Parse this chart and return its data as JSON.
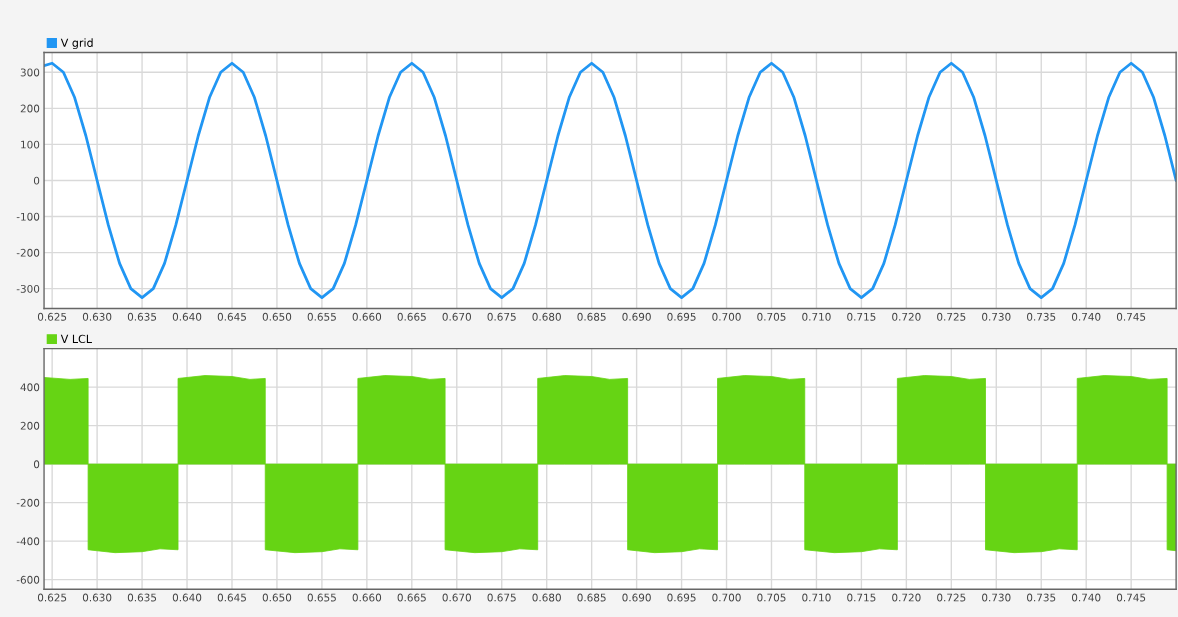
{
  "chart_data": [
    {
      "type": "line",
      "legend": "top left",
      "grid": true,
      "xlim": [
        0.6241,
        0.75
      ],
      "ylim": [
        -355,
        355
      ],
      "xticks": [
        {
          "value": 0.625,
          "label": "0.625"
        },
        {
          "value": 0.63,
          "label": "0.630"
        },
        {
          "value": 0.635,
          "label": "0.635"
        },
        {
          "value": 0.64,
          "label": "0.640"
        },
        {
          "value": 0.645,
          "label": "0.645"
        },
        {
          "value": 0.65,
          "label": "0.650"
        },
        {
          "value": 0.655,
          "label": "0.655"
        },
        {
          "value": 0.66,
          "label": "0.660"
        },
        {
          "value": 0.665,
          "label": "0.665"
        },
        {
          "value": 0.67,
          "label": "0.670"
        },
        {
          "value": 0.675,
          "label": "0.675"
        },
        {
          "value": 0.68,
          "label": "0.680"
        },
        {
          "value": 0.685,
          "label": "0.685"
        },
        {
          "value": 0.69,
          "label": "0.690"
        },
        {
          "value": 0.695,
          "label": "0.695"
        },
        {
          "value": 0.7,
          "label": "0.700"
        },
        {
          "value": 0.705,
          "label": "0.705"
        },
        {
          "value": 0.71,
          "label": "0.710"
        },
        {
          "value": 0.715,
          "label": "0.715"
        },
        {
          "value": 0.72,
          "label": "0.720"
        },
        {
          "value": 0.725,
          "label": "0.725"
        },
        {
          "value": 0.73,
          "label": "0.730"
        },
        {
          "value": 0.735,
          "label": "0.735"
        },
        {
          "value": 0.74,
          "label": "0.740"
        },
        {
          "value": 0.745,
          "label": "0.745"
        }
      ],
      "yticks": [
        -300,
        -200,
        -100,
        0,
        100,
        200,
        300
      ],
      "series": [
        {
          "name": "V grid",
          "color": "#2196f3",
          "x": [
            0.6241,
            0.625,
            0.62625,
            0.6275,
            0.62875,
            0.63,
            0.63125,
            0.6325,
            0.63375,
            0.635,
            0.63625,
            0.6375,
            0.63875,
            0.64,
            0.64125,
            0.6425,
            0.64375,
            0.645,
            0.64625,
            0.6475,
            0.64875,
            0.65,
            0.65125,
            0.6525,
            0.65375,
            0.655,
            0.65625,
            0.6575,
            0.65875,
            0.66,
            0.66125,
            0.6625,
            0.66375,
            0.665,
            0.66625,
            0.6675,
            0.66875,
            0.67,
            0.67125,
            0.6725,
            0.67375,
            0.675,
            0.67625,
            0.6775,
            0.67875,
            0.68,
            0.68125,
            0.6825,
            0.68375,
            0.685,
            0.68625,
            0.6875,
            0.68875,
            0.69,
            0.69125,
            0.6925,
            0.69375,
            0.695,
            0.69625,
            0.6975,
            0.69875,
            0.7,
            0.70125,
            0.7025,
            0.70375,
            0.705,
            0.70625,
            0.7075,
            0.70875,
            0.71,
            0.71125,
            0.7125,
            0.71375,
            0.715,
            0.71625,
            0.7175,
            0.71875,
            0.72,
            0.72125,
            0.7225,
            0.72375,
            0.725,
            0.72625,
            0.7275,
            0.72875,
            0.73,
            0.73125,
            0.7325,
            0.73375,
            0.735,
            0.73625,
            0.7375,
            0.73875,
            0.74,
            0.74125,
            0.7425,
            0.74375,
            0.745,
            0.74625,
            0.7475,
            0.74875,
            0.75
          ],
          "values": [
            318,
            325,
            300,
            230,
            124,
            0,
            -124,
            -230,
            -300,
            -325,
            -300,
            -230,
            -124,
            0,
            124,
            230,
            300,
            325,
            300,
            230,
            124,
            0,
            -124,
            -230,
            -300,
            -325,
            -300,
            -230,
            -124,
            0,
            124,
            230,
            300,
            325,
            300,
            230,
            124,
            0,
            -124,
            -230,
            -300,
            -325,
            -300,
            -230,
            -124,
            0,
            124,
            230,
            300,
            325,
            300,
            230,
            124,
            0,
            -124,
            -230,
            -300,
            -325,
            -300,
            -230,
            -124,
            0,
            124,
            230,
            300,
            325,
            300,
            230,
            124,
            0,
            -124,
            -230,
            -300,
            -325,
            -300,
            -230,
            -124,
            0,
            124,
            230,
            300,
            325,
            300,
            230,
            124,
            0,
            -124,
            -230,
            -300,
            -325,
            -300,
            -230,
            -124,
            0,
            124,
            230,
            300,
            325,
            300,
            230,
            124,
            0
          ]
        }
      ]
    },
    {
      "type": "area",
      "legend": "top left",
      "grid": true,
      "xlim": [
        0.6241,
        0.75
      ],
      "ylim": [
        -650,
        600
      ],
      "xticks": [
        {
          "value": 0.625,
          "label": "0.625"
        },
        {
          "value": 0.63,
          "label": "0.630"
        },
        {
          "value": 0.635,
          "label": "0.635"
        },
        {
          "value": 0.64,
          "label": "0.640"
        },
        {
          "value": 0.645,
          "label": "0.645"
        },
        {
          "value": 0.65,
          "label": "0.650"
        },
        {
          "value": 0.655,
          "label": "0.655"
        },
        {
          "value": 0.66,
          "label": "0.660"
        },
        {
          "value": 0.665,
          "label": "0.665"
        },
        {
          "value": 0.67,
          "label": "0.670"
        },
        {
          "value": 0.675,
          "label": "0.675"
        },
        {
          "value": 0.68,
          "label": "0.680"
        },
        {
          "value": 0.685,
          "label": "0.685"
        },
        {
          "value": 0.69,
          "label": "0.690"
        },
        {
          "value": 0.695,
          "label": "0.695"
        },
        {
          "value": 0.7,
          "label": "0.700"
        },
        {
          "value": 0.705,
          "label": "0.705"
        },
        {
          "value": 0.71,
          "label": "0.710"
        },
        {
          "value": 0.715,
          "label": "0.715"
        },
        {
          "value": 0.72,
          "label": "0.720"
        },
        {
          "value": 0.725,
          "label": "0.725"
        },
        {
          "value": 0.73,
          "label": "0.730"
        },
        {
          "value": 0.735,
          "label": "0.735"
        },
        {
          "value": 0.74,
          "label": "0.740"
        },
        {
          "value": 0.745,
          "label": "0.745"
        }
      ],
      "yticks": [
        -600,
        -400,
        -200,
        0,
        200,
        400
      ],
      "series": [
        {
          "name": "V LCL",
          "color": "#66d414",
          "x": [
            0.6241,
            0.6241,
            0.627,
            0.629,
            0.629,
            0.629,
            0.632,
            0.635,
            0.637,
            0.639,
            0.639,
            0.639,
            0.642,
            0.645,
            0.647,
            0.6487,
            0.6487,
            0.6487,
            0.652,
            0.655,
            0.657,
            0.659,
            0.659,
            0.659,
            0.662,
            0.665,
            0.667,
            0.6687,
            0.6687,
            0.6687,
            0.672,
            0.675,
            0.677,
            0.679,
            0.679,
            0.679,
            0.682,
            0.685,
            0.687,
            0.689,
            0.689,
            0.689,
            0.692,
            0.695,
            0.697,
            0.699,
            0.699,
            0.699,
            0.702,
            0.705,
            0.707,
            0.7087,
            0.7087,
            0.7087,
            0.712,
            0.715,
            0.717,
            0.719,
            0.719,
            0.719,
            0.722,
            0.725,
            0.727,
            0.7288,
            0.7288,
            0.7288,
            0.732,
            0.735,
            0.737,
            0.739,
            0.739,
            0.739,
            0.742,
            0.745,
            0.747,
            0.749,
            0.749,
            0.749,
            0.75
          ],
          "values": [
            0,
            450,
            440,
            445,
            0,
            -445,
            -460,
            -455,
            -440,
            -445,
            0,
            445,
            460,
            455,
            440,
            445,
            0,
            -445,
            -460,
            -455,
            -440,
            -445,
            0,
            445,
            460,
            455,
            440,
            445,
            0,
            -445,
            -460,
            -455,
            -440,
            -445,
            0,
            445,
            460,
            455,
            440,
            445,
            0,
            -445,
            -460,
            -455,
            -440,
            -445,
            0,
            445,
            460,
            455,
            440,
            445,
            0,
            -445,
            -460,
            -455,
            -440,
            -445,
            0,
            445,
            460,
            455,
            440,
            445,
            0,
            -445,
            -460,
            -455,
            -440,
            -445,
            0,
            445,
            460,
            455,
            440,
            445,
            0,
            -445,
            -450
          ]
        }
      ]
    }
  ]
}
